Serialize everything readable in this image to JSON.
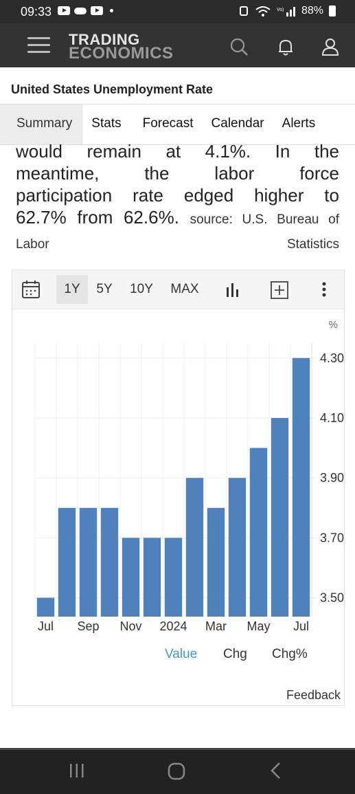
{
  "status_bar": {
    "time": "09:33",
    "battery": "88%"
  },
  "app": {
    "logo_line1": "TRADING",
    "logo_line2": "ECONOMICS"
  },
  "page": {
    "title": "United States Unemployment Rate"
  },
  "tabs": [
    {
      "label": "Summary",
      "active": true
    },
    {
      "label": "Stats"
    },
    {
      "label": "Forecast"
    },
    {
      "label": "Calendar"
    },
    {
      "label": "Alerts"
    }
  ],
  "summary": {
    "line1": "would remain at 4.1%. In the",
    "line2": "meantime, the labor force",
    "line3": "participation rate edged higher to",
    "line4": "62.7% from 62.6%.",
    "source": "source: U.S. Bureau of Labor Statistics"
  },
  "chart_toolbar": {
    "ranges": [
      "1Y",
      "5Y",
      "10Y",
      "MAX"
    ],
    "active_range": "1Y"
  },
  "chart_data": {
    "type": "bar",
    "unit": "%",
    "values": [
      3.5,
      3.8,
      3.8,
      3.8,
      3.7,
      3.7,
      3.7,
      3.9,
      3.8,
      3.9,
      4.0,
      4.1,
      4.3
    ],
    "x_tick_labels": [
      {
        "index": 0,
        "label": "Jul"
      },
      {
        "index": 2,
        "label": "Sep"
      },
      {
        "index": 4,
        "label": "Nov"
      },
      {
        "index": 6,
        "label": "2024"
      },
      {
        "index": 8,
        "label": "Mar"
      },
      {
        "index": 10,
        "label": "May"
      },
      {
        "index": 12,
        "label": "Jul"
      }
    ],
    "y_ticks": [
      3.5,
      3.7,
      3.9,
      4.1,
      4.3
    ],
    "y_tick_labels": [
      "3.50",
      "3.70",
      "3.90",
      "4.10",
      "4.30"
    ],
    "ylim": [
      3.437,
      4.35
    ],
    "y_axis_position": "right",
    "grid": true,
    "bar_color": "#4f81bd"
  },
  "legend": {
    "value": "Value",
    "chg": "Chg",
    "chg_pct": "Chg%",
    "active": "Value",
    "active_color": "#3a9bd5"
  },
  "feedback_label": "Feedback"
}
